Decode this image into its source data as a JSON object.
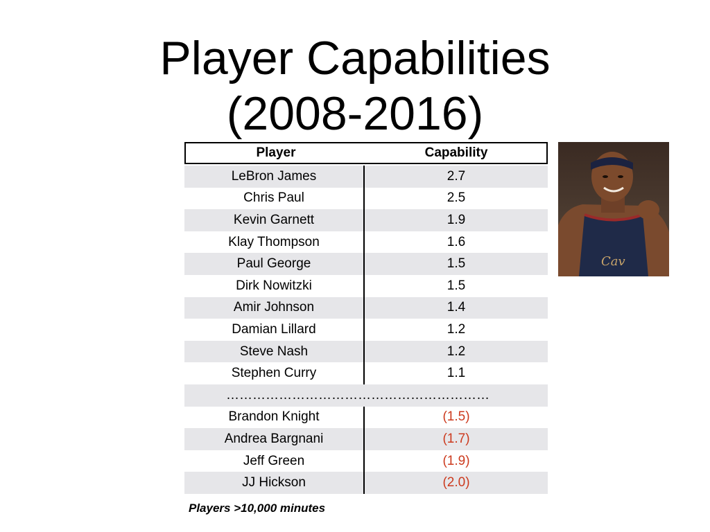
{
  "slide": {
    "title_line1": "Player Capabilities",
    "title_line2": "(2008-2016)",
    "footnote": "Players >10,000 minutes"
  },
  "table": {
    "headers": [
      "Player",
      "Capability"
    ],
    "top_rows": [
      {
        "player": "LeBron James",
        "capability": "2.7"
      },
      {
        "player": "Chris Paul",
        "capability": "2.5"
      },
      {
        "player": "Kevin Garnett",
        "capability": "1.9"
      },
      {
        "player": "Klay Thompson",
        "capability": "1.6"
      },
      {
        "player": "Paul George",
        "capability": "1.5"
      },
      {
        "player": "Dirk Nowitzki",
        "capability": "1.5"
      },
      {
        "player": "Amir Johnson",
        "capability": "1.4"
      },
      {
        "player": "Damian Lillard",
        "capability": "1.2"
      },
      {
        "player": "Steve Nash",
        "capability": "1.2"
      },
      {
        "player": "Stephen Curry",
        "capability": "1.1"
      }
    ],
    "separator": "……………………………………………………",
    "bottom_rows": [
      {
        "player": "Brandon Knight",
        "capability": "(1.5)"
      },
      {
        "player": "Andrea Bargnani",
        "capability": "(1.7)"
      },
      {
        "player": "Jeff Green",
        "capability": "(1.9)"
      },
      {
        "player": "JJ Hickson",
        "capability": "(2.0)"
      }
    ]
  },
  "colors": {
    "row_shade": "#e6e6e9",
    "negative_value": "#cc3a1e"
  }
}
